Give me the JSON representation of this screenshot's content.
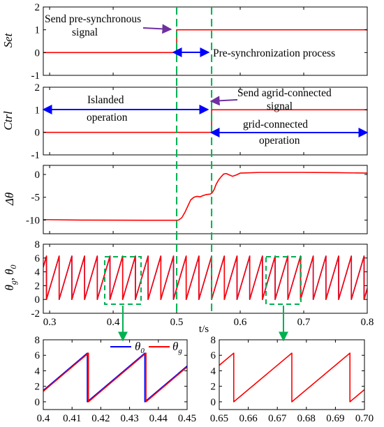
{
  "colors": {
    "red": "#ff0000",
    "blue": "#0000ff",
    "green": "#00b050",
    "purple": "#7030a0",
    "black": "#000000"
  },
  "x_axis": {
    "label": "t/s",
    "ticks": [
      "0.3",
      "0.4",
      "0.5",
      "0.6",
      "0.7",
      "0.8"
    ]
  },
  "annotations": {
    "send_pre_sync_line1": "Send pre-synchronous",
    "send_pre_sync_line2": "signal",
    "pre_sync_process": "Pre-synchronization process",
    "islanded_line1": "Islanded",
    "islanded_line2": "operation",
    "send_grid_line1": "Send agrid-connected",
    "send_grid_line2": "signal",
    "grid_connected_line1": "grid-connected",
    "grid_connected_line2": "operation"
  },
  "panels": {
    "set": {
      "ylabel": "Set",
      "yticks": [
        "-1",
        "0",
        "1",
        "2"
      ]
    },
    "ctrl": {
      "ylabel": "Ctrl",
      "yticks": [
        "-1",
        "0",
        "1",
        "2"
      ]
    },
    "dtheta": {
      "ylabel": "Δθ",
      "yticks": [
        "-10",
        "-5",
        "0"
      ]
    },
    "theta": {
      "ylabel_main": "θ",
      "ylabel_sub1": "g",
      "ylabel_sep": ",",
      "ylabel_sub2": "0",
      "yticks": [
        "-2",
        "0",
        "2",
        "4",
        "6",
        "8"
      ]
    },
    "zoom1": {
      "xticks": [
        "0.4",
        "0.41",
        "0.42",
        "0.43",
        "0.44",
        "0.45"
      ],
      "yticks": [
        "0",
        "2",
        "4",
        "6",
        "8"
      ],
      "legend": [
        {
          "main": "θ",
          "sub": "0",
          "color": "#0000ff"
        },
        {
          "main": "θ",
          "sub": "g",
          "color": "#ff0000"
        }
      ]
    },
    "zoom2": {
      "xticks": [
        "0.65",
        "0.66",
        "0.67",
        "0.68",
        "0.69",
        "0.70"
      ],
      "yticks": [
        "0",
        "2",
        "4",
        "6",
        "8"
      ]
    }
  },
  "chart_data": [
    {
      "type": "line",
      "id": "set",
      "ylabel": "Set",
      "xlim": [
        0.29,
        0.8
      ],
      "ylim": [
        -1,
        2
      ],
      "series": [
        {
          "color": "#ff0000",
          "x": [
            0.29,
            0.5,
            0.5,
            0.8
          ],
          "y": [
            0,
            0,
            1,
            1
          ]
        }
      ],
      "vlines": [
        0.5,
        0.555
      ]
    },
    {
      "type": "line",
      "id": "ctrl",
      "ylabel": "Ctrl",
      "xlim": [
        0.29,
        0.8
      ],
      "ylim": [
        -1,
        2
      ],
      "series": [
        {
          "color": "#ff0000",
          "x": [
            0.29,
            0.555,
            0.555,
            0.8
          ],
          "y": [
            0,
            0,
            1,
            1
          ]
        }
      ],
      "vlines": [
        0.5,
        0.555
      ]
    },
    {
      "type": "line",
      "id": "dtheta",
      "ylabel": "Δθ",
      "xlim": [
        0.29,
        0.8
      ],
      "ylim": [
        -13,
        2
      ],
      "series": [
        {
          "color": "#ff0000",
          "x": [
            0.29,
            0.35,
            0.45,
            0.5,
            0.503,
            0.508,
            0.513,
            0.518,
            0.522,
            0.527,
            0.532,
            0.537,
            0.542,
            0.547,
            0.553,
            0.556,
            0.559,
            0.562,
            0.566,
            0.57,
            0.574,
            0.578,
            0.583,
            0.588,
            0.594,
            0.6,
            0.61,
            0.63,
            0.66,
            0.7,
            0.75,
            0.8
          ],
          "y": [
            -9.9,
            -10.0,
            -10.05,
            -10.05,
            -10.0,
            -9.5,
            -8.3,
            -6.8,
            -5.6,
            -5.0,
            -4.8,
            -4.9,
            -4.6,
            -4.4,
            -4.3,
            -4.0,
            -3.3,
            -2.2,
            -1.2,
            -0.5,
            0.1,
            0.2,
            -0.1,
            -0.4,
            -0.1,
            0.3,
            0.35,
            0.45,
            0.45,
            0.45,
            0.4,
            0.3
          ]
        }
      ],
      "vlines": [
        0.5,
        0.555
      ]
    },
    {
      "type": "line",
      "id": "theta",
      "ylabel": "θg, θ0",
      "xlim": [
        0.29,
        0.8
      ],
      "ylim": [
        -2,
        8
      ],
      "series": [
        {
          "name": "θ0",
          "color": "#0000ff",
          "sawtooth": {
            "t0": 0.295,
            "period": 0.02,
            "min": 0,
            "max": 6.28
          }
        },
        {
          "name": "θg",
          "color": "#ff0000",
          "sawtooth": {
            "t0": 0.295,
            "period": 0.02,
            "min": 0,
            "max": 6.28
          }
        }
      ],
      "vlines": [
        0.5,
        0.555
      ]
    },
    {
      "type": "line",
      "id": "zoom1",
      "xlim": [
        0.4,
        0.45
      ],
      "ylim": [
        -1,
        8
      ],
      "series": [
        {
          "name": "θ0",
          "color": "#0000ff",
          "sawtooth": {
            "t0": 0.3953,
            "period": 0.02,
            "min": 0,
            "max": 6.28
          }
        },
        {
          "name": "θg",
          "color": "#ff0000",
          "sawtooth": {
            "t0": 0.3957,
            "period": 0.02,
            "min": 0,
            "max": 6.28
          }
        }
      ]
    },
    {
      "type": "line",
      "id": "zoom2",
      "xlim": [
        0.65,
        0.7
      ],
      "ylim": [
        -1,
        8
      ],
      "series": [
        {
          "name": "θg",
          "color": "#ff0000",
          "sawtooth": {
            "t0": 0.635,
            "period": 0.02,
            "min": 0,
            "max": 6.28
          }
        }
      ]
    }
  ]
}
